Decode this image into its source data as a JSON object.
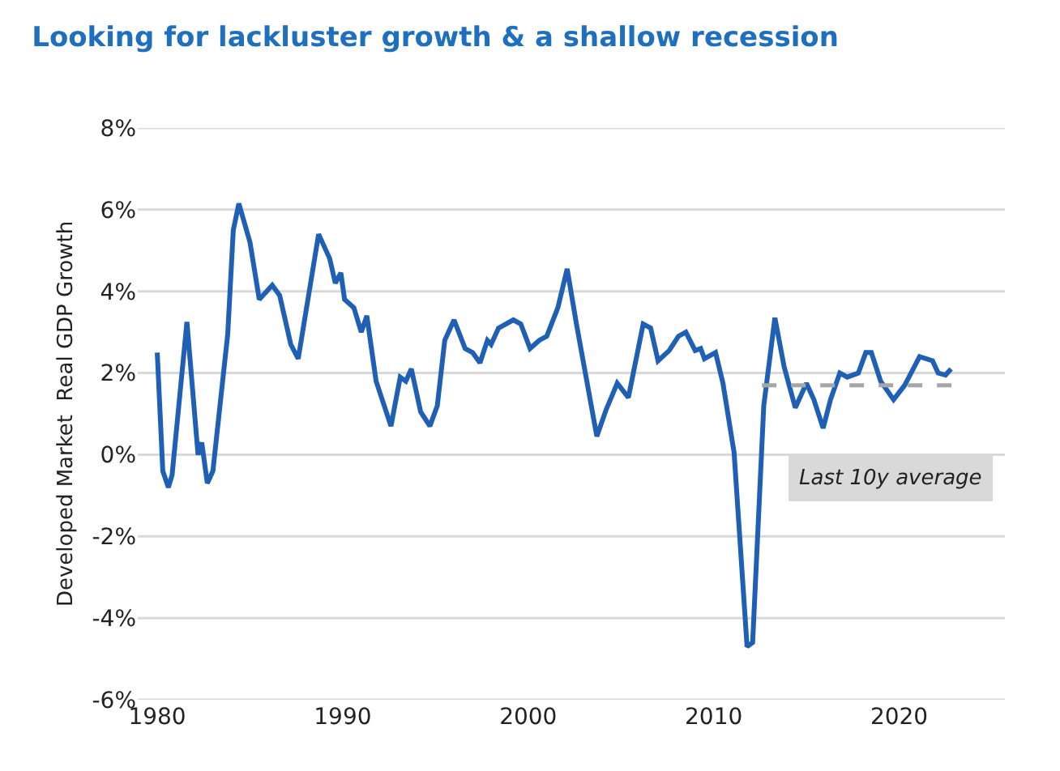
{
  "chart_data": {
    "type": "line",
    "title": "Looking for lackluster growth & a shallow recession",
    "ylabel": "Developed Market  Real GDP Growth",
    "series": [
      {
        "color": "#1f5fb4",
        "x": [
          1980.0,
          1980.3,
          1980.6,
          1980.8,
          1981.6,
          1982.2,
          1982.4,
          1982.7,
          1983.0,
          1983.8,
          1984.1,
          1984.4,
          1985.0,
          1985.5,
          1986.2,
          1986.6,
          1987.2,
          1987.6,
          1988.7,
          1989.3,
          1989.6,
          1989.9,
          1990.1,
          1990.6,
          1991.0,
          1991.3,
          1991.8,
          1992.6,
          1993.1,
          1993.4,
          1993.7,
          1994.2,
          1994.7,
          1995.1,
          1995.5,
          1996.0,
          1996.6,
          1997.0,
          1997.4,
          1997.8,
          1998.0,
          1998.4,
          1999.2,
          1999.6,
          2000.1,
          2000.6,
          2001.0,
          2001.6,
          2002.1,
          2002.6,
          2003.7,
          2004.2,
          2004.8,
          2005.4,
          2006.2,
          2006.6,
          2007.0,
          2007.6,
          2008.1,
          2008.5,
          2009.0,
          2009.3,
          2009.5,
          2010.1,
          2010.5,
          2011.1,
          2011.8,
          2012.1,
          2012.7,
          2013.3,
          2013.8,
          2014.4,
          2015.0,
          2015.4,
          2015.9,
          2016.3,
          2016.8,
          2017.2,
          2017.8,
          2018.2,
          2018.5,
          2019.0,
          2019.7,
          2020.3,
          2021.1,
          2021.8,
          2022.1,
          2022.5,
          2022.8
        ],
        "values": [
          2.5,
          -0.4,
          -0.8,
          -0.5,
          3.25,
          0.0,
          0.3,
          -0.7,
          -0.4,
          2.95,
          5.5,
          6.15,
          5.2,
          3.8,
          4.15,
          3.9,
          2.7,
          2.35,
          5.4,
          4.8,
          4.2,
          4.45,
          3.8,
          3.6,
          3.0,
          3.4,
          1.8,
          0.7,
          1.9,
          1.8,
          2.1,
          1.05,
          0.7,
          1.2,
          2.8,
          3.3,
          2.6,
          2.5,
          2.25,
          2.8,
          2.7,
          3.1,
          3.3,
          3.2,
          2.6,
          2.8,
          2.9,
          3.6,
          4.55,
          3.2,
          0.45,
          1.1,
          1.75,
          1.4,
          3.2,
          3.1,
          2.3,
          2.55,
          2.9,
          3.0,
          2.55,
          2.6,
          2.35,
          2.5,
          1.75,
          0.05,
          -4.7,
          -4.6,
          1.2,
          3.35,
          2.15,
          1.15,
          1.75,
          1.35,
          0.65,
          1.35,
          2.0,
          1.9,
          2.0,
          2.5,
          2.5,
          1.8,
          1.35,
          1.7,
          2.4,
          2.3,
          2.0,
          1.95,
          2.1
        ]
      },
      {
        "color": "#a6a6a6",
        "line_style": "dashed",
        "x": [
          2012.6,
          2023.1
        ],
        "values": [
          1.7,
          1.7
        ]
      }
    ],
    "annotations": [
      "Last 10y average"
    ],
    "xlim": [
      1978.95,
      2025.7
    ],
    "xticks": [
      1980,
      1990,
      2000,
      2010,
      2020
    ],
    "ylim": [
      -6,
      8
    ],
    "yticks": [
      {
        "value": 8,
        "label": "8%"
      },
      {
        "value": 6,
        "label": "6%"
      },
      {
        "value": 4,
        "label": "4%"
      },
      {
        "value": 2,
        "label": "2%"
      },
      {
        "value": 0,
        "label": "0%"
      },
      {
        "value": -2,
        "label": "-2%"
      },
      {
        "value": -4,
        "label": "-4%"
      },
      {
        "value": -6,
        "label": "-6%"
      }
    ],
    "grid": "y",
    "line_style": "solid",
    "marker": "none"
  }
}
